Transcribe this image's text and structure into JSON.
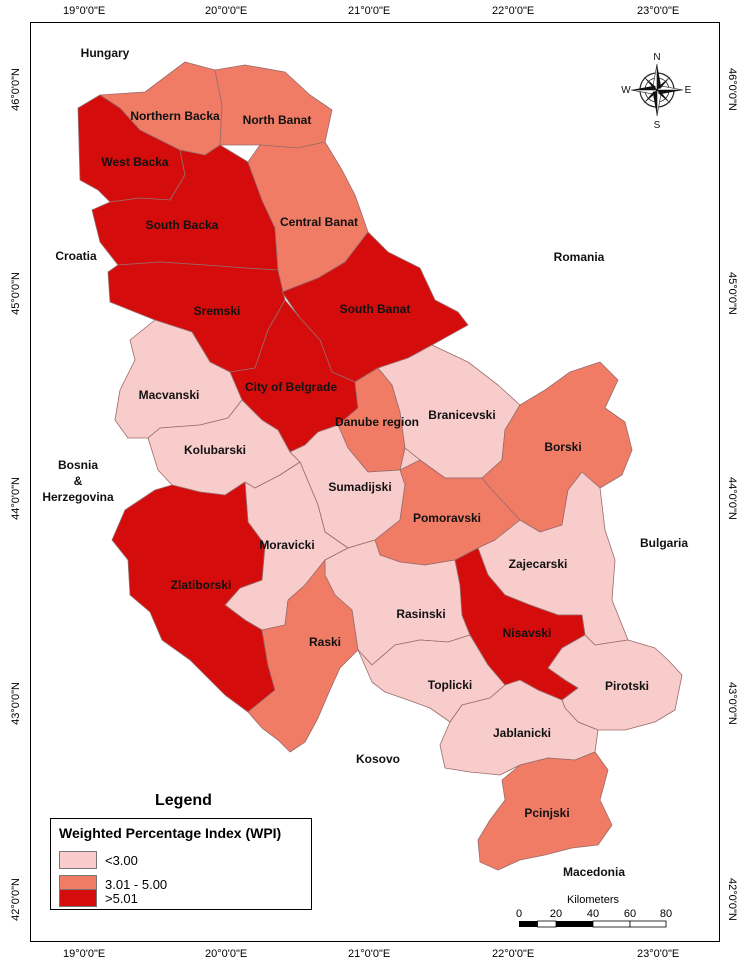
{
  "map": {
    "lon_ticks": [
      "19°0'0\"E",
      "20°0'0\"E",
      "21°0'0\"E",
      "22°0'0\"E",
      "23°0'0\"E"
    ],
    "lat_ticks": [
      "46°0'0\"N",
      "45°0'0\"N",
      "44°0'0\"N",
      "43°0'0\"N",
      "42°0'0\"N"
    ],
    "neighbors": [
      "Hungary",
      "Croatia",
      "Romania",
      "Bosnia",
      "&",
      "Herzegovina",
      "Bulgaria",
      "Kosovo",
      "Macedonia"
    ],
    "compass": {
      "n": "N",
      "s": "S",
      "e": "E",
      "w": "W"
    },
    "scale": {
      "title": "Kilometers",
      "labels": [
        "0",
        "20",
        "40",
        "60",
        "80"
      ]
    }
  },
  "legend": {
    "heading": "Legend",
    "title": "Weighted Percentage Index (WPI)",
    "classes": [
      {
        "label": "<3.00",
        "color": "#f9cccc"
      },
      {
        "label": "3.01 - 5.00",
        "color": "#f07c66"
      },
      {
        "label": ">5.01",
        "color": "#d50c0c"
      }
    ]
  },
  "regions": [
    {
      "name": "Northern Backa",
      "class": 1
    },
    {
      "name": "North Banat",
      "class": 1
    },
    {
      "name": "West Backa",
      "class": 2
    },
    {
      "name": "South Backa",
      "class": 2
    },
    {
      "name": "Central Banat",
      "class": 1
    },
    {
      "name": "Sremski",
      "class": 2
    },
    {
      "name": "South Banat",
      "class": 2
    },
    {
      "name": "City of Belgrade",
      "class": 2
    },
    {
      "name": "Macvanski",
      "class": 0
    },
    {
      "name": "Danube region",
      "class": 1
    },
    {
      "name": "Branicevski",
      "class": 0
    },
    {
      "name": "Borski",
      "class": 1
    },
    {
      "name": "Kolubarski",
      "class": 0
    },
    {
      "name": "Sumadijski",
      "class": 0
    },
    {
      "name": "Pomoravski",
      "class": 1
    },
    {
      "name": "Moravicki",
      "class": 0
    },
    {
      "name": "Zajecarski",
      "class": 0
    },
    {
      "name": "Zlatiborski",
      "class": 2
    },
    {
      "name": "Rasinski",
      "class": 0
    },
    {
      "name": "Nisavski",
      "class": 2
    },
    {
      "name": "Raski",
      "class": 1
    },
    {
      "name": "Toplicki",
      "class": 0
    },
    {
      "name": "Pirotski",
      "class": 0
    },
    {
      "name": "Jablanicki",
      "class": 0
    },
    {
      "name": "Pcinjski",
      "class": 1
    }
  ]
}
